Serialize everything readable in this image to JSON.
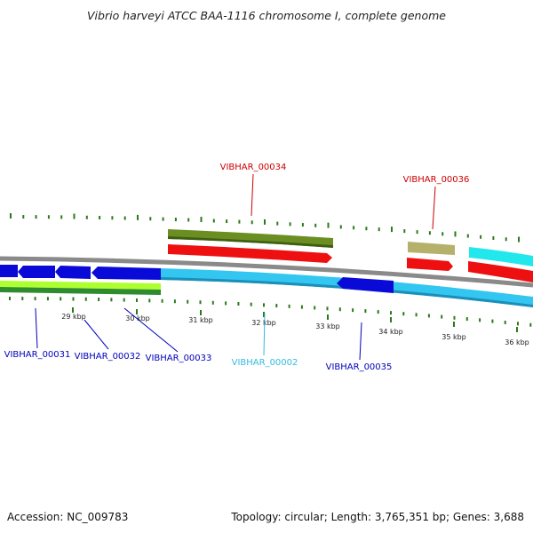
{
  "title": "Vibrio harveyi ATCC BAA-1116 chromosome I, complete genome",
  "footer": {
    "accession": "Accession: NC_009783",
    "summary": "Topology: circular; Length: 3,765,351 bp; Genes: 3,688"
  },
  "colors": {
    "backbone": "#8a8a8a",
    "dark_blue": "#0a0ad8",
    "light_blue": "#33c6f0",
    "cyan": "#22e8ee",
    "red": "#ee1010",
    "olive": "#6b8e23",
    "khaki": "#b5b06a",
    "lime": "#adff2f",
    "green": "#2e8b2e",
    "tick": "#2a7a1a"
  },
  "ticks": [
    "29 kbp",
    "30 kbp",
    "31 kbp",
    "32 kbp",
    "33 kbp",
    "34 kbp",
    "35 kbp",
    "36 kbp"
  ],
  "genes": {
    "g31": {
      "label": "VIBHAR_00031",
      "color": "#0000bb"
    },
    "g32": {
      "label": "VIBHAR_00032",
      "color": "#0000bb"
    },
    "g33": {
      "label": "VIBHAR_00033",
      "color": "#0000bb"
    },
    "g02": {
      "label": "VIBHAR_00002",
      "color": "#33bbdd"
    },
    "g34": {
      "label": "VIBHAR_00034",
      "color": "#cc0000"
    },
    "g35": {
      "label": "VIBHAR_00035",
      "color": "#0000bb"
    },
    "g36": {
      "label": "VIBHAR_00036",
      "color": "#cc0000"
    }
  }
}
